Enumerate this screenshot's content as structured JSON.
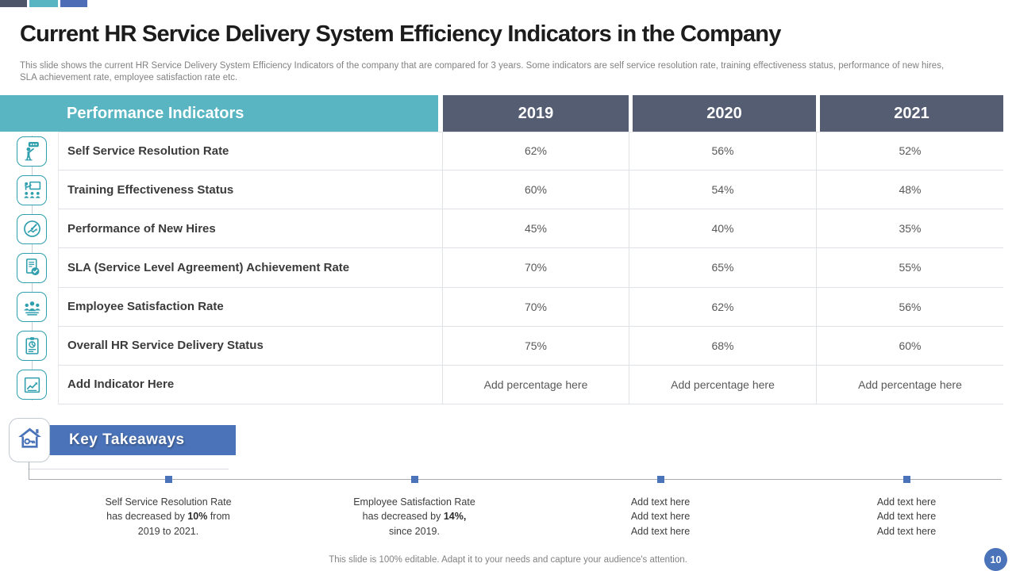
{
  "slide": {
    "title": "Current HR Service Delivery System Efficiency Indicators in the Company",
    "subtitle_lines": [
      "This slide shows the current HR Service Delivery System Efficiency Indicators of the company that are compared for 3 years. Some indicators are self service resolution rate, training effectiveness status, performance of new hires,",
      "SLA achievement rate, employee satisfaction rate etc."
    ],
    "footer": "This slide is 100% editable. Adapt it to your needs and capture your audience's attention.",
    "page_number": "10"
  },
  "table": {
    "header": {
      "indicator_label": "Performance Indicators",
      "years": [
        "2019",
        "2020",
        "2021"
      ]
    },
    "rows": [
      {
        "icon": "presenter-icon",
        "label": "Self Service Resolution Rate",
        "values": [
          "62%",
          "56%",
          "52%"
        ]
      },
      {
        "icon": "training-icon",
        "label": "Training Effectiveness Status",
        "values": [
          "60%",
          "54%",
          "48%"
        ]
      },
      {
        "icon": "gauge-icon",
        "label": "Performance of New Hires",
        "values": [
          "45%",
          "40%",
          "35%"
        ]
      },
      {
        "icon": "sla-document-icon",
        "label": "SLA (Service Level Agreement) Achievement Rate",
        "values": [
          "70%",
          "65%",
          "55%"
        ]
      },
      {
        "icon": "employee-group-icon",
        "label": "Employee Satisfaction Rate",
        "values": [
          "70%",
          "62%",
          "56%"
        ]
      },
      {
        "icon": "clipboard-chart-icon",
        "label": "Overall HR Service Delivery Status",
        "values": [
          "75%",
          "68%",
          "60%"
        ]
      },
      {
        "icon": "add-indicator-icon",
        "label": "Add Indicator Here",
        "values": [
          "Add percentage here",
          "Add percentage here",
          "Add percentage here"
        ]
      }
    ]
  },
  "key_takeaways": {
    "label": "Key Takeaways",
    "icon": "house-key-icon",
    "items": [
      {
        "lines": [
          [
            {
              "t": "Self Service Resolution Rate"
            }
          ],
          [
            {
              "t": "has decreased by "
            },
            {
              "t": "10%",
              "b": true
            },
            {
              "t": " from"
            }
          ],
          [
            {
              "t": "2019 to 2021."
            }
          ]
        ]
      },
      {
        "lines": [
          [
            {
              "t": "Employee Satisfaction Rate"
            }
          ],
          [
            {
              "t": "has decreased by "
            },
            {
              "t": "14%,",
              "b": true
            }
          ],
          [
            {
              "t": "since 2019."
            }
          ]
        ]
      },
      {
        "lines": [
          [
            {
              "t": "Add text here"
            }
          ],
          [
            {
              "t": "Add text here"
            }
          ],
          [
            {
              "t": "Add text here"
            }
          ]
        ]
      },
      {
        "lines": [
          [
            {
              "t": "Add text here"
            }
          ],
          [
            {
              "t": "Add text here"
            }
          ],
          [
            {
              "t": "Add text here"
            }
          ]
        ]
      }
    ]
  },
  "colors": {
    "teal_header": "#58b5c1",
    "slate_header": "#555d73",
    "accent_blue": "#4a73b9",
    "icon_teal": "#2f9fae"
  }
}
